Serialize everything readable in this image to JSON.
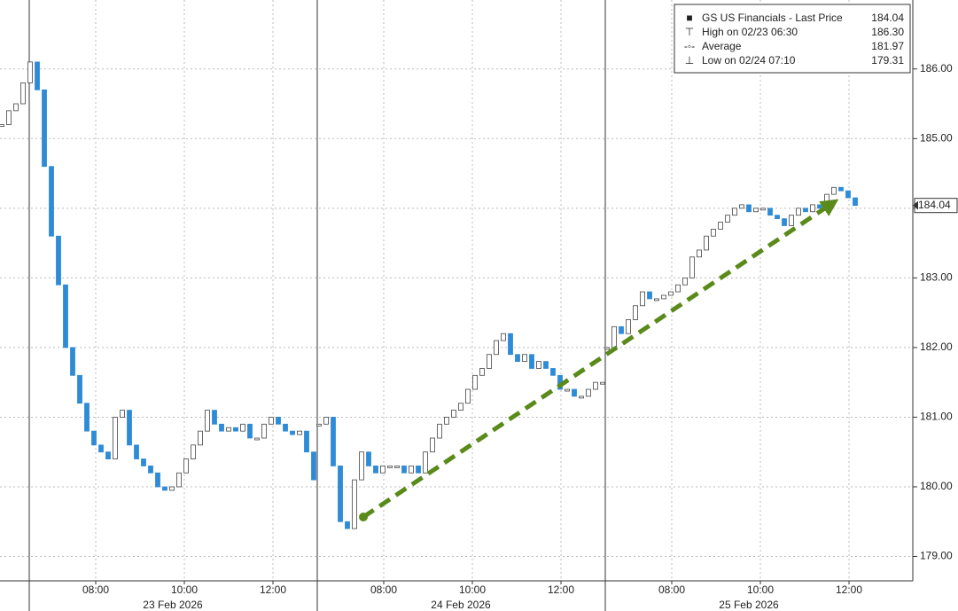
{
  "chart_data": {
    "type": "candlestick",
    "ylim": [
      178.65,
      186.99
    ],
    "yticks": [
      {
        "value": 179,
        "label": "179.00"
      },
      {
        "value": 180,
        "label": "180.00"
      },
      {
        "value": 181,
        "label": "181.00"
      },
      {
        "value": 182,
        "label": "182.00"
      },
      {
        "value": 183,
        "label": "183.00"
      },
      {
        "value": 184,
        "label": "184.00"
      },
      {
        "value": 185,
        "label": "185.00"
      },
      {
        "value": 186,
        "label": "186.00"
      }
    ],
    "grid": true,
    "up_color": "#ffffff",
    "down_color": "#2e8bd6",
    "days": [
      {
        "label": "23 Feb 2026",
        "ticks": [
          "08:00",
          "10:00",
          "12:00"
        ],
        "values": [
          185.2,
          185.4,
          185.5,
          185.8,
          186.1,
          185.7,
          184.6,
          183.6,
          182.9,
          182.0,
          181.6,
          181.2,
          180.8,
          180.6,
          180.5,
          180.4,
          181.0,
          181.1,
          180.6,
          180.4,
          180.3,
          180.2,
          180.0,
          179.95,
          180.0,
          180.2,
          180.4,
          180.6,
          180.8,
          181.1,
          180.9,
          180.8,
          180.85,
          180.8,
          180.9,
          180.7,
          180.7,
          180.9,
          181.0,
          180.9,
          180.8,
          180.75,
          180.8,
          180.5,
          180.1
        ]
      },
      {
        "label": "24 Feb 2026",
        "ticks": [
          "08:00",
          "10:00",
          "12:00"
        ],
        "values": [
          180.9,
          181.0,
          180.3,
          179.5,
          179.4,
          180.1,
          180.5,
          180.3,
          180.2,
          180.3,
          180.3,
          180.3,
          180.2,
          180.3,
          180.2,
          180.5,
          180.7,
          180.9,
          181.0,
          181.1,
          181.2,
          181.4,
          181.6,
          181.7,
          181.9,
          182.1,
          182.2,
          181.9,
          181.8,
          181.9,
          181.7,
          181.8,
          181.7,
          181.6,
          181.4,
          181.4,
          181.3,
          181.3,
          181.4,
          181.5,
          181.5
        ]
      },
      {
        "label": "25 Feb 2026",
        "ticks": [
          "08:00",
          "10:00",
          "12:00"
        ],
        "values": [
          182.0,
          182.3,
          182.2,
          182.4,
          182.6,
          182.8,
          182.7,
          182.7,
          182.75,
          182.8,
          182.9,
          183.0,
          183.3,
          183.4,
          183.6,
          183.7,
          183.8,
          183.9,
          184.0,
          184.05,
          183.95,
          184.0,
          184.0,
          183.9,
          183.85,
          183.75,
          183.9,
          184.0,
          183.95,
          184.05,
          184.0,
          184.2,
          184.3,
          184.25,
          184.15,
          184.04
        ]
      }
    ],
    "legend": {
      "labels": [
        "GS US Financials - Last Price",
        "High on 02/23 06:30",
        "Average",
        "Low on 02/24 07:10"
      ],
      "values": [
        184.04,
        186.3,
        181.97,
        179.31
      ],
      "value_labels": [
        "184.04",
        "186.30",
        "181.97",
        "179.31"
      ]
    }
  }
}
